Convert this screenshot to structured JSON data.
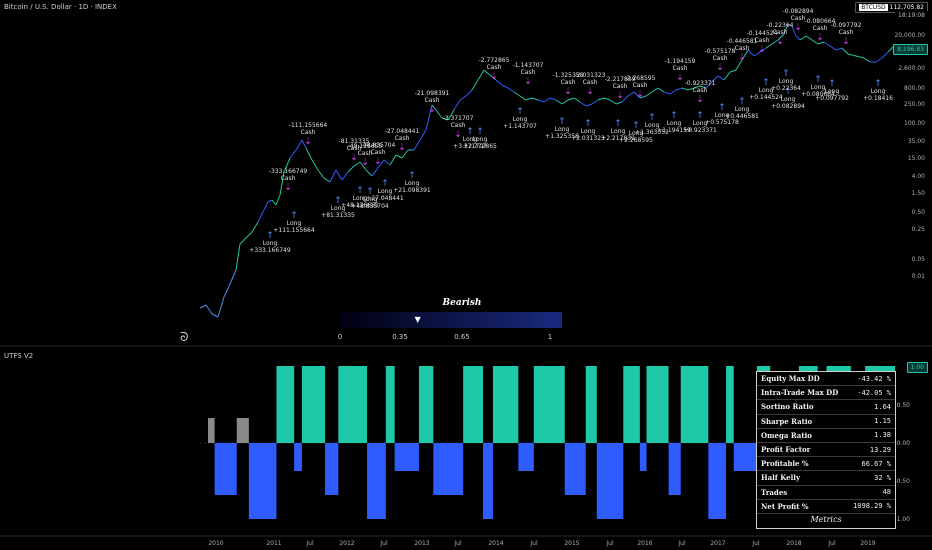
{
  "header": {
    "title": "Bitcoin / U.S. Dollar · 1D · INDEX"
  },
  "price_panel": {
    "symbol_tag": "BTCUSD",
    "last_price": "112,705.82",
    "countdown": "18:19:08",
    "strategy_price": "8,196.83",
    "y_ticks": [
      "20,000.00",
      "6,000.00",
      "2,600.00",
      "800.00",
      "250.00",
      "100.00",
      "35.00",
      "15.00",
      "4.00",
      "1.50",
      "0.50",
      "0.25",
      "0.05",
      "0.01"
    ],
    "regime": {
      "label": "Bearish",
      "ticks": [
        "0",
        "0.35",
        "0.65",
        "1"
      ],
      "marker_value": 0.35
    }
  },
  "annotations": [
    {
      "text": "Long\n+333.166749",
      "kind": "long"
    },
    {
      "text": "-333.166749\nCash",
      "kind": "cash"
    },
    {
      "text": "Long\n+111.155664",
      "kind": "long"
    },
    {
      "text": "-111.155664\nCash",
      "kind": "cash"
    },
    {
      "text": "Long\n+81.31335",
      "kind": "long"
    },
    {
      "text": "-81.31335\nCash",
      "kind": "cash"
    },
    {
      "text": "Long\n+48.126655",
      "kind": "long"
    },
    {
      "text": "-48.126655\nCash",
      "kind": "cash"
    },
    {
      "text": "Long\n+48.835704",
      "kind": "long"
    },
    {
      "text": "-48.835704\nCash",
      "kind": "cash"
    },
    {
      "text": "Long\n+27.048441",
      "kind": "long"
    },
    {
      "text": "-27.048441\nCash",
      "kind": "cash"
    },
    {
      "text": "Long\n+21.098391",
      "kind": "long"
    },
    {
      "text": "-21.098391\nCash",
      "kind": "cash"
    },
    {
      "text": "Long\n+3.371707",
      "kind": "long"
    },
    {
      "text": "-3.371707\nCash",
      "kind": "cash"
    },
    {
      "text": "Long\n+2.772865",
      "kind": "long"
    },
    {
      "text": "-2.772865\nCash",
      "kind": "cash"
    },
    {
      "text": "Long\n+1.143707",
      "kind": "long"
    },
    {
      "text": "-1.143707\nCash",
      "kind": "cash"
    },
    {
      "text": "Long\n+1.325358",
      "kind": "long"
    },
    {
      "text": "-1.325358\nCash",
      "kind": "cash"
    },
    {
      "text": "Long\n+2.031323",
      "kind": "long"
    },
    {
      "text": "-2.031323\nCash",
      "kind": "cash"
    },
    {
      "text": "Long\n+2.217839",
      "kind": "long"
    },
    {
      "text": "-2.217839\nCash",
      "kind": "cash"
    },
    {
      "text": "Long\n+2.268595",
      "kind": "long"
    },
    {
      "text": "-2.268595\nCash",
      "kind": "cash"
    },
    {
      "text": "Long\n+1.363052",
      "kind": "long"
    },
    {
      "text": "Long\n+1.194159",
      "kind": "long"
    },
    {
      "text": "-1.194159\nCash",
      "kind": "cash"
    },
    {
      "text": "Long\n+0.923371",
      "kind": "long"
    },
    {
      "text": "-0.923371\nCash",
      "kind": "cash"
    },
    {
      "text": "Long\n+0.575178",
      "kind": "long"
    },
    {
      "text": "-0.575178\nCash",
      "kind": "cash"
    },
    {
      "text": "Long\n+0.446581",
      "kind": "long"
    },
    {
      "text": "-0.446581\nCash",
      "kind": "cash"
    },
    {
      "text": "Long\n+0.144524",
      "kind": "long"
    },
    {
      "text": "-0.144524\nCash",
      "kind": "cash"
    },
    {
      "text": "Long\n+0.22364",
      "kind": "long"
    },
    {
      "text": "-0.22364\nCash",
      "kind": "cash"
    },
    {
      "text": "Long\n+0.082894",
      "kind": "long"
    },
    {
      "text": "-0.082894\nCash",
      "kind": "cash"
    },
    {
      "text": "Long\n+0.080664",
      "kind": "long"
    },
    {
      "text": "-0.080664\nCash",
      "kind": "cash"
    },
    {
      "text": "Long\n+0.097792",
      "kind": "long"
    },
    {
      "text": "-0.097792\nCash",
      "kind": "cash"
    },
    {
      "text": "Long\n+0.18416",
      "kind": "long"
    }
  ],
  "indicator_panel": {
    "title": "UTFS V2",
    "value_box": "1.00",
    "y_ticks": [
      "0.50",
      "0.00",
      "-0.50",
      "-1.00"
    ]
  },
  "x_axis": {
    "ticks": [
      "2010",
      "2011",
      "Jul",
      "2012",
      "Jul",
      "2013",
      "Jul",
      "2014",
      "Jul",
      "2015",
      "Jul",
      "2016",
      "Jul",
      "2017",
      "Jul",
      "2018",
      "Jul",
      "2019"
    ]
  },
  "metrics": {
    "title": "Metrics",
    "rows": [
      {
        "label": "Equity  Max  DD",
        "value": "-43.42 %"
      },
      {
        "label": "Intra-Trade  Max  DD",
        "value": "-42.05 %"
      },
      {
        "label": "Sortino  Ratio",
        "value": "1.64"
      },
      {
        "label": "Sharpe  Ratio",
        "value": "1.15"
      },
      {
        "label": "Omega  Ratio",
        "value": "1.38"
      },
      {
        "label": "Profit  Factor",
        "value": "13.29"
      },
      {
        "label": "Profitable  %",
        "value": "66.67 %"
      },
      {
        "label": "Half  Kelly",
        "value": "32 %"
      },
      {
        "label": "Trades",
        "value": "48"
      },
      {
        "label": "Net  Profit  %",
        "value": "1098.29 %"
      }
    ]
  },
  "colors": {
    "bull": "#1ec8a8",
    "bear": "#2f5cff",
    "neutral": "#8a8a8a",
    "cash_marker": "#e040fb",
    "long_marker": "#4f8cff",
    "background": "#000000"
  },
  "chart_data": [
    {
      "type": "line",
      "title": "Bitcoin / U.S. Dollar · 1D · INDEX",
      "y_scale": "log",
      "ylim": [
        0.005,
        112705.82
      ],
      "x": [
        "2010",
        "2011",
        "2012",
        "2013",
        "2014",
        "2015",
        "2016",
        "2017",
        "2018",
        "2019"
      ],
      "y": [
        0.06,
        1.0,
        5,
        13,
        800,
        300,
        400,
        1000,
        14000,
        3500
      ]
    },
    {
      "type": "bar",
      "title": "UTFS V2",
      "ylim": [
        -1,
        1
      ],
      "values_description_levels": [
        1,
        -1,
        0.25
      ],
      "regime_sequence": [
        0.25,
        -1,
        0.25,
        -1,
        1,
        -1,
        1,
        -1,
        1,
        -1,
        1,
        -1,
        1,
        -1,
        1,
        -1,
        1,
        -1,
        1,
        -1,
        1,
        -1,
        1,
        -1,
        1,
        -1,
        1,
        -1,
        1,
        -1,
        1,
        -1,
        1,
        -1,
        1,
        -1,
        1
      ]
    }
  ]
}
